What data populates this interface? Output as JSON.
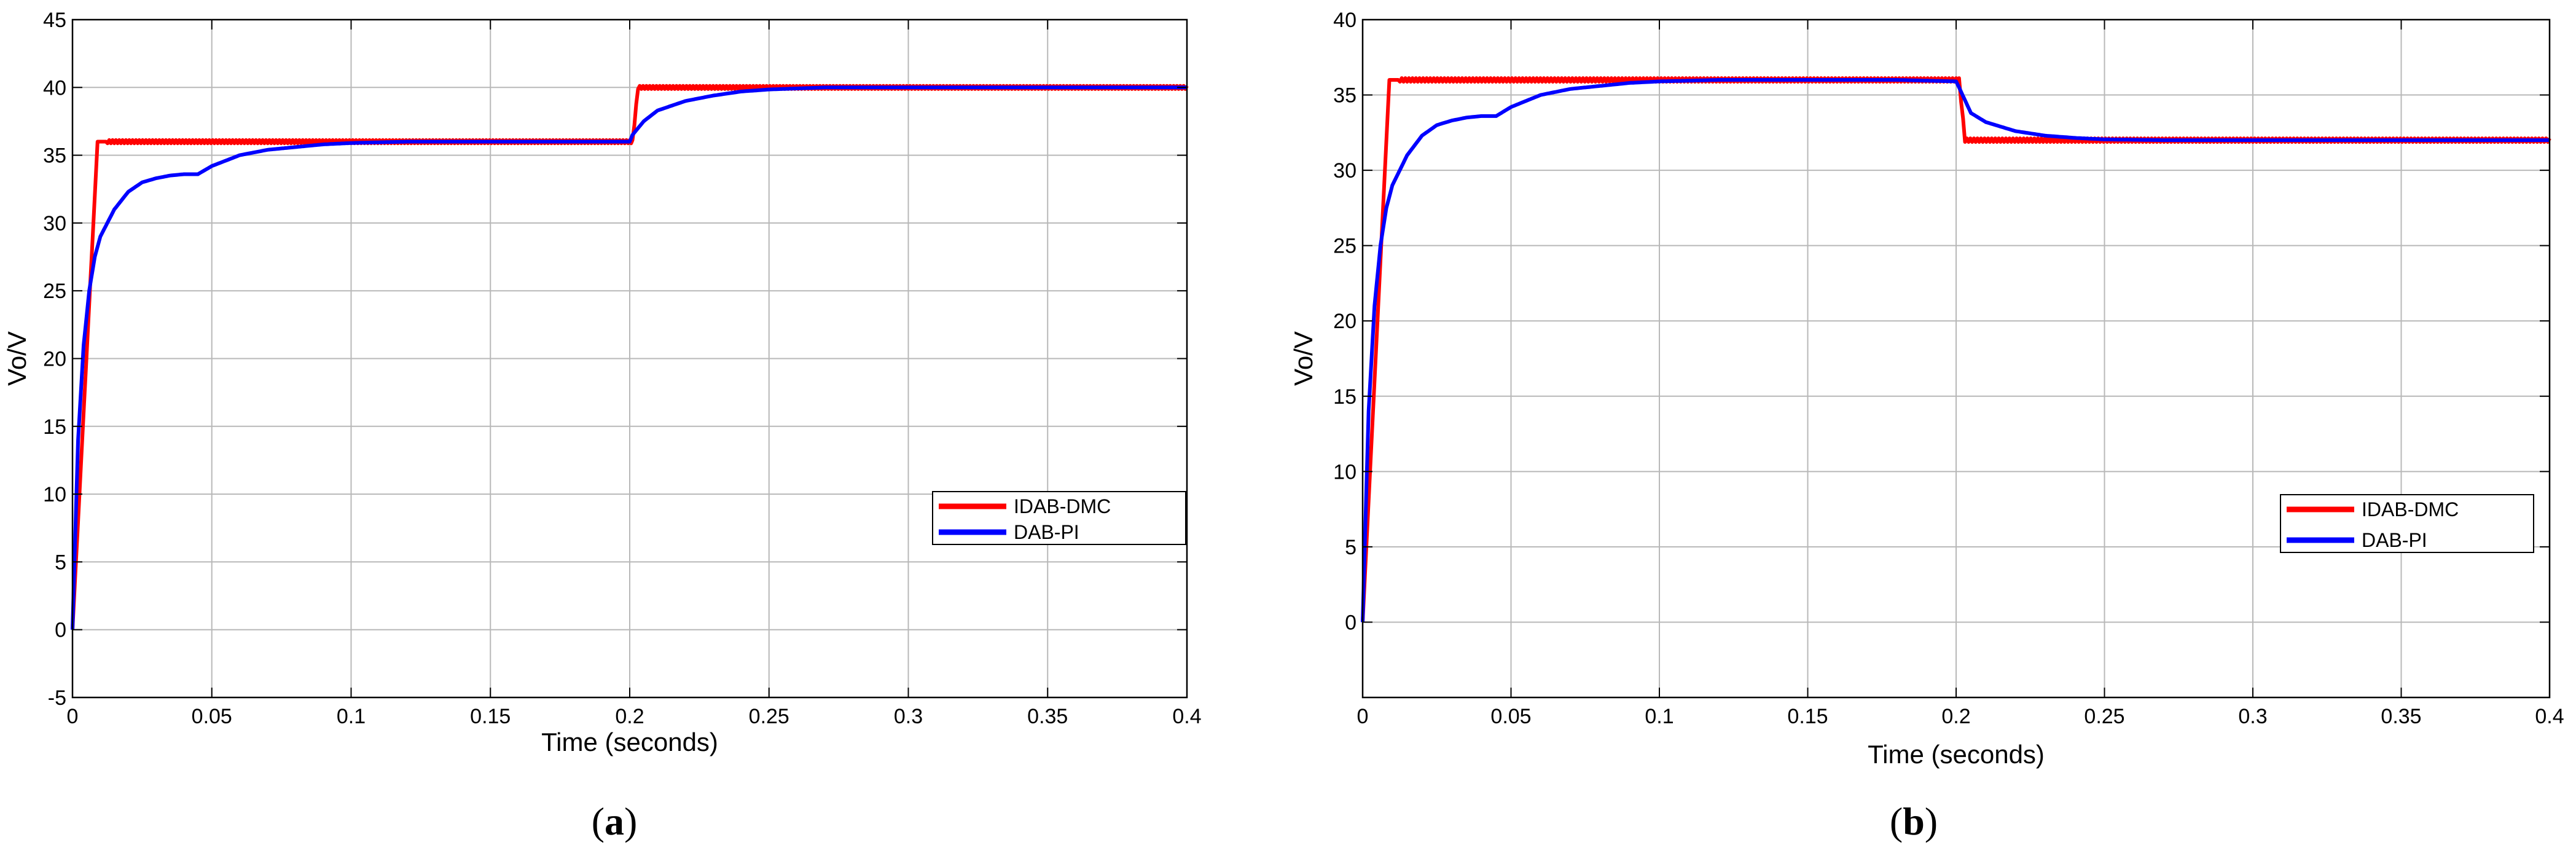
{
  "chart_data": [
    {
      "type": "line",
      "panel_label": "a",
      "xlabel": "Time (seconds)",
      "ylabel": "Vo/V",
      "xlim": [
        0,
        0.4
      ],
      "ylim": [
        -5,
        45
      ],
      "xticks": [
        0,
        0.05,
        0.1,
        0.15,
        0.2,
        0.25,
        0.3,
        0.35,
        0.4
      ],
      "xtick_labels": [
        "0",
        "0.05",
        "0.1",
        "0.15",
        "0.2",
        "0.25",
        "0.3",
        "0.35",
        "0.4"
      ],
      "yticks": [
        -5,
        0,
        5,
        10,
        15,
        20,
        25,
        30,
        35,
        40,
        45
      ],
      "ytick_labels": [
        "-5",
        "0",
        "5",
        "10",
        "15",
        "20",
        "25",
        "30",
        "35",
        "40",
        "45"
      ],
      "grid": true,
      "legend_position": "lower-right",
      "series": [
        {
          "name": "IDAB-DMC",
          "color": "#ff0000",
          "x": [
            0,
            0.009,
            0.1,
            0.2,
            0.201,
            0.203,
            0.3,
            0.4
          ],
          "y": [
            0,
            36,
            36,
            36,
            36,
            40,
            40,
            40
          ]
        },
        {
          "name": "DAB-PI",
          "color": "#0000ff",
          "x": [
            0,
            0.002,
            0.004,
            0.006,
            0.008,
            0.01,
            0.015,
            0.02,
            0.025,
            0.03,
            0.035,
            0.04,
            0.045,
            0.05,
            0.06,
            0.07,
            0.08,
            0.09,
            0.1,
            0.12,
            0.15,
            0.18,
            0.2,
            0.201,
            0.205,
            0.21,
            0.22,
            0.23,
            0.24,
            0.25,
            0.27,
            0.3,
            0.35,
            0.4
          ],
          "y": [
            0,
            14,
            21,
            25,
            27.5,
            29,
            31,
            32.3,
            33,
            33.3,
            33.5,
            33.6,
            33.6,
            34.2,
            35,
            35.4,
            35.6,
            35.8,
            35.9,
            36,
            36,
            36,
            36,
            36.5,
            37.5,
            38.3,
            39,
            39.4,
            39.7,
            39.85,
            40,
            40,
            40,
            40
          ]
        }
      ]
    },
    {
      "type": "line",
      "panel_label": "b",
      "xlabel": "Time (seconds)",
      "ylabel": "Vo/V",
      "xlim": [
        0,
        0.4
      ],
      "ylim": [
        -5,
        40
      ],
      "xticks": [
        0,
        0.05,
        0.1,
        0.15,
        0.2,
        0.25,
        0.3,
        0.35,
        0.4
      ],
      "xtick_labels": [
        "0",
        "0.05",
        "0.1",
        "0.15",
        "0.2",
        "0.25",
        "0.3",
        "0.35",
        "0.4"
      ],
      "yticks": [
        0,
        5,
        10,
        15,
        20,
        25,
        30,
        35,
        40
      ],
      "ytick_labels": [
        "0",
        "5",
        "10",
        "15",
        "20",
        "25",
        "30",
        "35",
        "40"
      ],
      "grid": true,
      "legend_position": "lower-right",
      "series": [
        {
          "name": "IDAB-DMC",
          "color": "#ff0000",
          "x": [
            0,
            0.009,
            0.1,
            0.2,
            0.201,
            0.203,
            0.3,
            0.4
          ],
          "y": [
            0,
            36,
            36,
            36,
            36,
            32,
            32,
            32
          ]
        },
        {
          "name": "DAB-PI",
          "color": "#0000ff",
          "x": [
            0,
            0.002,
            0.004,
            0.006,
            0.008,
            0.01,
            0.015,
            0.02,
            0.025,
            0.03,
            0.035,
            0.04,
            0.045,
            0.05,
            0.06,
            0.07,
            0.08,
            0.09,
            0.1,
            0.12,
            0.15,
            0.18,
            0.2,
            0.201,
            0.205,
            0.21,
            0.22,
            0.23,
            0.24,
            0.25,
            0.27,
            0.3,
            0.35,
            0.4
          ],
          "y": [
            0,
            14,
            21,
            25,
            27.5,
            29,
            31,
            32.3,
            33,
            33.3,
            33.5,
            33.6,
            33.6,
            34.2,
            35,
            35.4,
            35.6,
            35.8,
            35.9,
            36,
            36,
            36,
            35.9,
            35.5,
            33.8,
            33.2,
            32.6,
            32.3,
            32.15,
            32.05,
            32,
            32,
            32,
            32
          ]
        }
      ]
    }
  ]
}
